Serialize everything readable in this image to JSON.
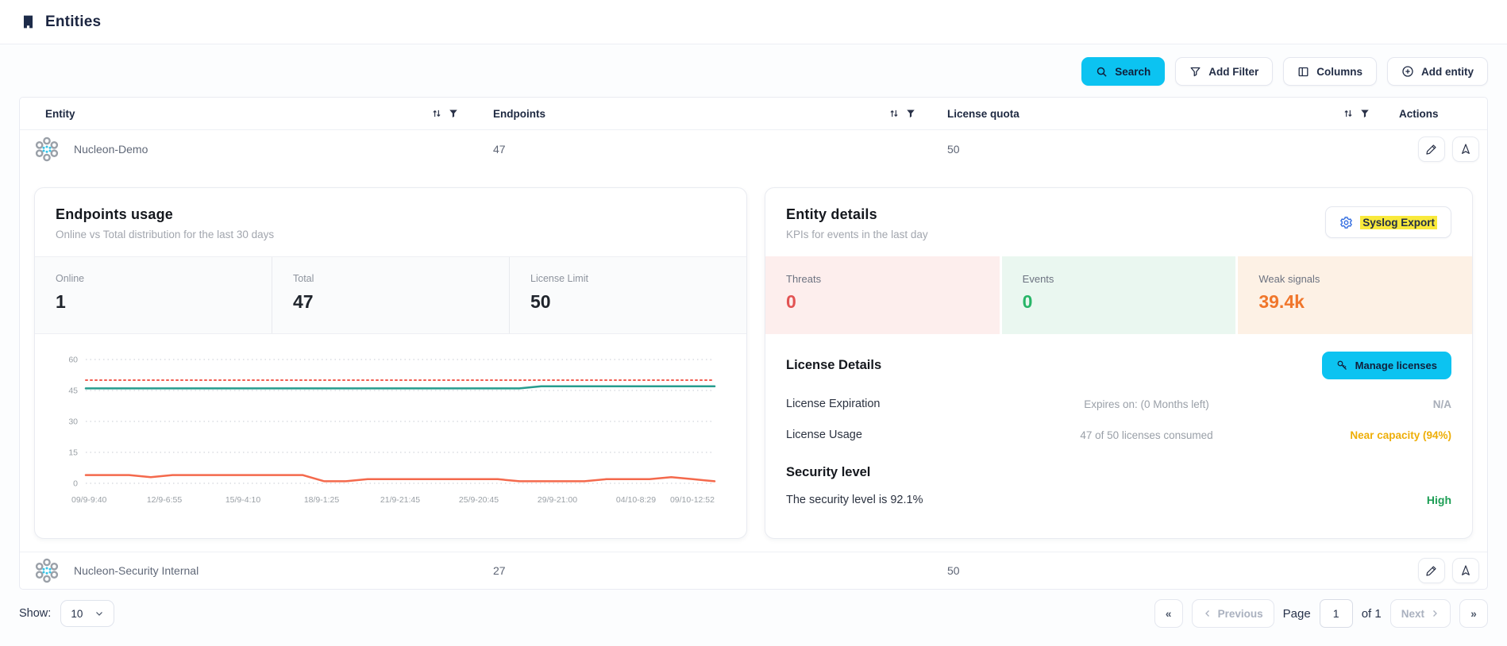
{
  "header": {
    "title": "Entities"
  },
  "toolbar": {
    "search_label": "Search",
    "add_filter_label": "Add Filter",
    "columns_label": "Columns",
    "add_entity_label": "Add entity"
  },
  "colors": {
    "accent_cyan": "#0cc3f1",
    "highlight_yellow": "#f9e93b",
    "threats_red": "#e25353",
    "events_green": "#27b567",
    "weak_orange": "#f0762b",
    "warn_amber": "#eeae08",
    "high_green": "#1d9e55",
    "chart_teal": "#279c8e",
    "chart_orange": "#f4694c",
    "chart_limit_red": "#f25c4f"
  },
  "table": {
    "columns": [
      "Entity",
      "Endpoints",
      "License quota",
      "Actions"
    ],
    "rows": [
      {
        "name": "Nucleon-Demo",
        "endpoints": "47",
        "license_quota": "50"
      },
      {
        "name": "Nucleon-Security Internal",
        "endpoints": "27",
        "license_quota": "50"
      }
    ]
  },
  "endpoints_usage": {
    "title": "Endpoints usage",
    "subtitle": "Online vs Total distribution for the last 30 days",
    "stats": [
      {
        "label": "Online",
        "value": "1"
      },
      {
        "label": "Total",
        "value": "47"
      },
      {
        "label": "License Limit",
        "value": "50"
      }
    ]
  },
  "chart_data": {
    "type": "line",
    "title": "Endpoints usage",
    "xlabel": "",
    "ylabel": "",
    "ylim": [
      0,
      60
    ],
    "yticks": [
      0,
      15,
      30,
      45,
      60
    ],
    "grid": "dotted-horizontal",
    "x_labels": [
      "09/9-9:40",
      "12/9-6:55",
      "15/9-4:10",
      "18/9-1:25",
      "21/9-21:45",
      "25/9-20:45",
      "29/9-21:00",
      "04/10-8:29",
      "09/10-12:52"
    ],
    "series": [
      {
        "name": "License Limit",
        "color": "#f25c4f",
        "dash": "2 4",
        "width": 2,
        "values": [
          50,
          50,
          50,
          50,
          50,
          50,
          50,
          50,
          50,
          50,
          50,
          50,
          50,
          50,
          50,
          50,
          50,
          50,
          50,
          50,
          50,
          50,
          50,
          50,
          50,
          50,
          50,
          50,
          50,
          50
        ]
      },
      {
        "name": "Total",
        "color": "#279c8e",
        "width": 2.5,
        "values": [
          46,
          46,
          46,
          46,
          46,
          46,
          46,
          46,
          46,
          46,
          46,
          46,
          46,
          46,
          46,
          46,
          46,
          46,
          46,
          46,
          46,
          47,
          47,
          47,
          47,
          47,
          47,
          47,
          47,
          47
        ]
      },
      {
        "name": "Online",
        "color": "#f4694c",
        "width": 2.5,
        "values": [
          4,
          4,
          4,
          3,
          4,
          4,
          4,
          4,
          4,
          4,
          4,
          1,
          1,
          2,
          2,
          2,
          2,
          2,
          2,
          2,
          1,
          1,
          1,
          1,
          2,
          2,
          2,
          3,
          2,
          1
        ]
      }
    ]
  },
  "entity_details": {
    "title": "Entity details",
    "subtitle": "KPIs for events in the last day",
    "syslog_button": "Syslog Export",
    "kpis": [
      {
        "label": "Threats",
        "value": "0"
      },
      {
        "label": "Events",
        "value": "0"
      },
      {
        "label": "Weak signals",
        "value": "39.4k"
      }
    ],
    "license": {
      "heading": "License Details",
      "manage_button": "Manage licenses",
      "rows": [
        {
          "label": "License Expiration",
          "detail": "Expires on: (0 Months left)",
          "status": "N/A"
        },
        {
          "label": "License Usage",
          "detail": "47 of 50 licenses consumed",
          "status": "Near capacity (94%)"
        }
      ]
    },
    "security": {
      "heading": "Security level",
      "text": "The security level is 92.1%",
      "status": "High"
    }
  },
  "footer": {
    "show_label": "Show:",
    "page_size": "10",
    "first": "«",
    "previous": "Previous",
    "page_label": "Page",
    "page_value": "1",
    "of_label": "of 1",
    "next": "Next",
    "last": "»"
  }
}
